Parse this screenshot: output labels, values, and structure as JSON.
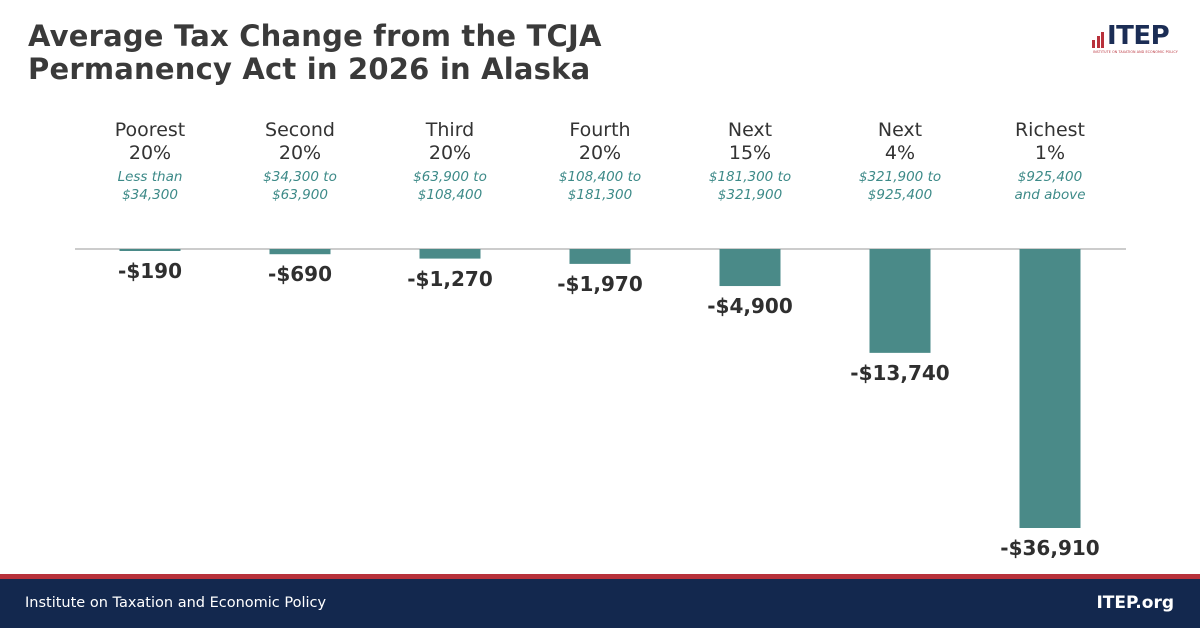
{
  "header": {
    "title_line1": "Average Tax Change from the TCJA",
    "title_line2": "Permanency Act in 2026 in Alaska"
  },
  "logo": {
    "text": "ITEP",
    "subtitle": "INSTITUTE ON TAXATION AND ECONOMIC POLICY",
    "icon": "bar-chart-icon",
    "colors": {
      "navy": "#1b2d55",
      "red": "#b8313b"
    }
  },
  "chart_data": {
    "type": "bar",
    "title": "Average Tax Change from the TCJA Permanency Act in 2026 in Alaska",
    "categories": [
      "Poorest\n20%",
      "Second\n20%",
      "Third\n20%",
      "Fourth\n20%",
      "Next\n15%",
      "Next\n4%",
      "Richest\n1%"
    ],
    "ranges": [
      "Less than\n$34,300",
      "$34,300 to\n$63,900",
      "$63,900 to\n$108,400",
      "$108,400 to\n$181,300",
      "$181,300 to\n$321,900",
      "$321,900 to\n$925,400",
      "$925,400\nand above"
    ],
    "values": [
      -190,
      -690,
      -1270,
      -1970,
      -4900,
      -13740,
      -36910
    ],
    "value_labels": [
      "-$190",
      "-$690",
      "-$1,270",
      "-$1,970",
      "-$4,900",
      "-$13,740",
      "-$36,910"
    ],
    "bar_color": "#4a8a88",
    "axis_color": "#9a9a9a",
    "grid": false,
    "legend": "none",
    "ylim": [
      -36910,
      0
    ]
  },
  "footer": {
    "org_name": "Institute on Taxation and Economic Policy",
    "url": "ITEP.org"
  }
}
